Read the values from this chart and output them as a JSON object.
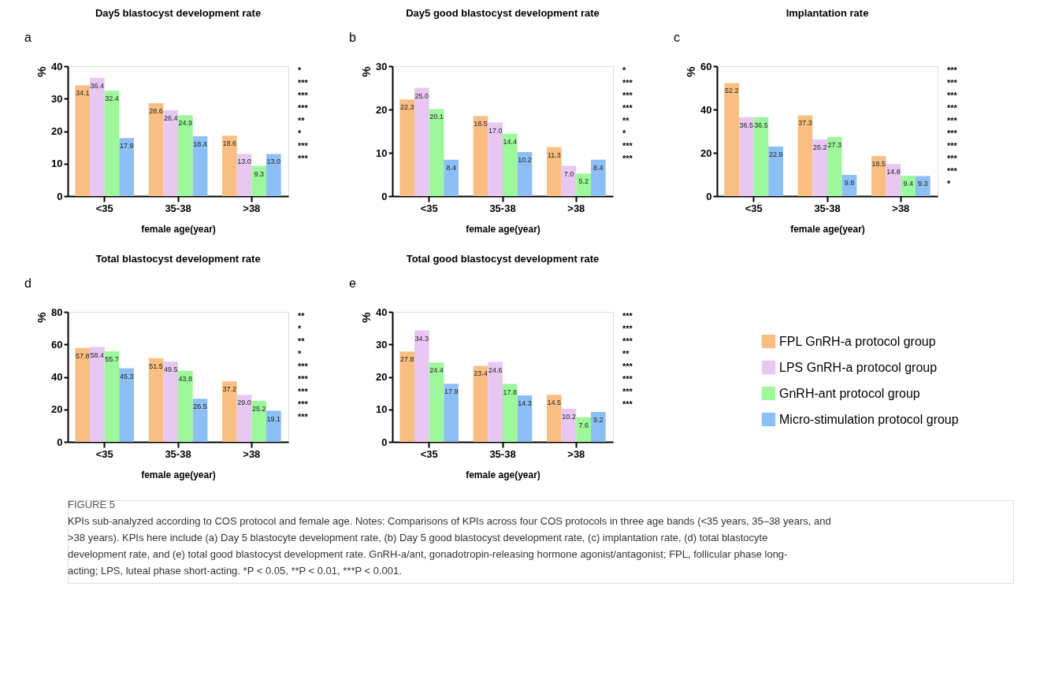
{
  "chart_data": [
    {
      "type": "bar",
      "title": "Day5 blastocyst development rate",
      "xlabel": "female age(year)",
      "ylabel": "%",
      "categories": [
        "<35",
        "35-38",
        ">38"
      ],
      "ylim": [
        0,
        40
      ],
      "yticks": [
        0,
        10,
        20,
        30,
        40
      ],
      "grid": false,
      "legend": "right",
      "series": [
        {
          "name": "FPL GnRH-a protocol group",
          "color": "#f9bf82",
          "values": [
            34.1,
            28.6,
            18.6
          ],
          "value_labels": [
            "34.1",
            "28.6",
            "18.6"
          ]
        },
        {
          "name": "LPS GnRH-a protocol group",
          "color": "#e8c8f3",
          "values": [
            36.4,
            26.4,
            13.0
          ],
          "value_labels": [
            "36.4",
            "26.4",
            "13.0"
          ]
        },
        {
          "name": "GnRH-ant protocol group",
          "color": "#9cf89a",
          "values": [
            32.4,
            24.9,
            9.3
          ],
          "value_labels": [
            "32.4",
            "24.9",
            "9.3"
          ]
        },
        {
          "name": "Micro-stimulation protocol group",
          "color": "#8cbff5",
          "values": [
            17.9,
            18.4,
            13.0
          ],
          "value_labels": [
            "17.9",
            "18.4",
            "13.0"
          ]
        }
      ],
      "annotations": [
        "a",
        "*",
        "***",
        "***",
        "***",
        "**",
        "*",
        "***",
        "***"
      ]
    },
    {
      "type": "bar",
      "title": "Day5 good blastocyst development rate",
      "xlabel": "female age(year)",
      "ylabel": "%",
      "categories": [
        "<35",
        "35-38",
        ">38"
      ],
      "ylim": [
        0,
        30
      ],
      "yticks": [
        0,
        10,
        20,
        30
      ],
      "grid": false,
      "legend": "right",
      "series": [
        {
          "name": "FPL GnRH-a protocol group",
          "color": "#f9bf82",
          "values": [
            22.3,
            18.5,
            11.3
          ],
          "value_labels": [
            "22.3",
            "18.5",
            "11.3"
          ]
        },
        {
          "name": "LPS GnRH-a protocol group",
          "color": "#e8c8f3",
          "values": [
            25.0,
            17.0,
            7.0
          ],
          "value_labels": [
            "25.0",
            "17.0",
            "7.0"
          ]
        },
        {
          "name": "GnRH-ant protocol group",
          "color": "#9cf89a",
          "values": [
            20.1,
            14.4,
            5.2
          ],
          "value_labels": [
            "20.1",
            "14.4",
            "5.2"
          ]
        },
        {
          "name": "Micro-stimulation protocol group",
          "color": "#8cbff5",
          "values": [
            8.4,
            10.2,
            8.4
          ],
          "value_labels": [
            "8.4",
            "10.2",
            "8.4"
          ]
        }
      ],
      "annotations": [
        "b",
        "*",
        "***",
        "***",
        "***",
        "**",
        "*",
        "***",
        "***"
      ]
    },
    {
      "type": "bar",
      "title": "Implantation rate",
      "xlabel": "female age(year)",
      "ylabel": "%",
      "categories": [
        "<35",
        "35-38",
        ">38"
      ],
      "ylim": [
        0,
        60
      ],
      "yticks": [
        0,
        20,
        40,
        60
      ],
      "grid": false,
      "legend": "right",
      "series": [
        {
          "name": "FPL GnRH-a protocol group",
          "color": "#f9bf82",
          "values": [
            52.2,
            37.3,
            18.5
          ],
          "value_labels": [
            "52.2",
            "37.3",
            "18.5"
          ]
        },
        {
          "name": "LPS GnRH-a protocol group",
          "color": "#e8c8f3",
          "values": [
            36.5,
            26.2,
            14.8
          ],
          "value_labels": [
            "36.5",
            "26.2",
            "14.8"
          ]
        },
        {
          "name": "GnRH-ant protocol group",
          "color": "#9cf89a",
          "values": [
            36.5,
            27.3,
            9.4
          ],
          "value_labels": [
            "36.5",
            "27.3",
            "9.4"
          ]
        },
        {
          "name": "Micro-stimulation protocol group",
          "color": "#8cbff5",
          "values": [
            22.9,
            9.8,
            9.3
          ],
          "value_labels": [
            "22.9",
            "9.8",
            "9.3"
          ]
        }
      ],
      "annotations": [
        "c",
        "***",
        "***",
        "***",
        "***",
        "***",
        "***",
        "***",
        "***",
        "***",
        "*"
      ]
    },
    {
      "type": "bar",
      "title": "Total blastocyst development rate",
      "xlabel": "female age(year)",
      "ylabel": "%",
      "categories": [
        "<35",
        "35-38",
        ">38"
      ],
      "ylim": [
        0,
        80
      ],
      "yticks": [
        0,
        20,
        40,
        60,
        80
      ],
      "grid": false,
      "legend": "right",
      "series": [
        {
          "name": "FPL GnRH-a protocol group",
          "color": "#f9bf82",
          "values": [
            57.8,
            51.5,
            37.2
          ],
          "value_labels": [
            "57.8",
            "51.5",
            "37.2"
          ]
        },
        {
          "name": "LPS GnRH-a protocol group",
          "color": "#e8c8f3",
          "values": [
            58.4,
            49.5,
            29.0
          ],
          "value_labels": [
            "58.4",
            "49.5",
            "29.0"
          ]
        },
        {
          "name": "GnRH-ant protocol group",
          "color": "#9cf89a",
          "values": [
            55.7,
            43.8,
            25.2
          ],
          "value_labels": [
            "55.7",
            "43.8",
            "25.2"
          ]
        },
        {
          "name": "Micro-stimulation protocol group",
          "color": "#8cbff5",
          "values": [
            45.3,
            26.5,
            19.1
          ],
          "value_labels": [
            "45.3",
            "26.5",
            "19.1"
          ]
        }
      ],
      "annotations": [
        "d",
        "**",
        "*",
        "**",
        "*",
        "***",
        "***",
        "***",
        "***",
        "***"
      ]
    },
    {
      "type": "bar",
      "title": "Total good blastocyst development rate",
      "xlabel": "female age(year)",
      "ylabel": "%",
      "categories": [
        "<35",
        "35-38",
        ">38"
      ],
      "ylim": [
        0,
        40
      ],
      "yticks": [
        0,
        10,
        20,
        30,
        40
      ],
      "grid": false,
      "legend": "right",
      "series": [
        {
          "name": "FPL GnRH-a protocol group",
          "color": "#f9bf82",
          "values": [
            27.8,
            23.4,
            14.5
          ],
          "value_labels": [
            "27.8",
            "23.4",
            "14.5"
          ]
        },
        {
          "name": "LPS GnRH-a protocol group",
          "color": "#e8c8f3",
          "values": [
            34.3,
            24.6,
            10.2
          ],
          "value_labels": [
            "34.3",
            "24.6",
            "10.2"
          ]
        },
        {
          "name": "GnRH-ant protocol group",
          "color": "#9cf89a",
          "values": [
            24.4,
            17.8,
            7.6
          ],
          "value_labels": [
            "24.4",
            "17.8",
            "7.6"
          ]
        },
        {
          "name": "Micro-stimulation protocol group",
          "color": "#8cbff5",
          "values": [
            17.9,
            14.3,
            9.2
          ],
          "value_labels": [
            "17.9",
            "14.3",
            "9.2"
          ]
        }
      ],
      "annotations": [
        "e",
        "***",
        "***",
        "***",
        "**",
        "***",
        "***",
        "***",
        "***"
      ]
    },
    {
      "type": "other",
      "annotations": [
        "FIGURE 5",
        "KPIs sub-analyzed according to COS protocol and female age. Notes: Comparisons of KPIs across four COS protocols in three age bands (<35 years, 35–38 years, and >38 years). KPIs here include (a) Day 5 blastocyte development rate, (b) Day 5 good blastocyst development rate, (c) implantation rate, (d) total blastocyte development rate, and (e) total good blastocyst development rate. GnRH-a/ant, gonadotropin-releasing hormone agonist/antagonist; FPL, follicular phase long-acting; LPS, luteal phase short-acting. *P < 0.05, **P < 0.01, ***P < 0.001."
      ]
    }
  ]
}
